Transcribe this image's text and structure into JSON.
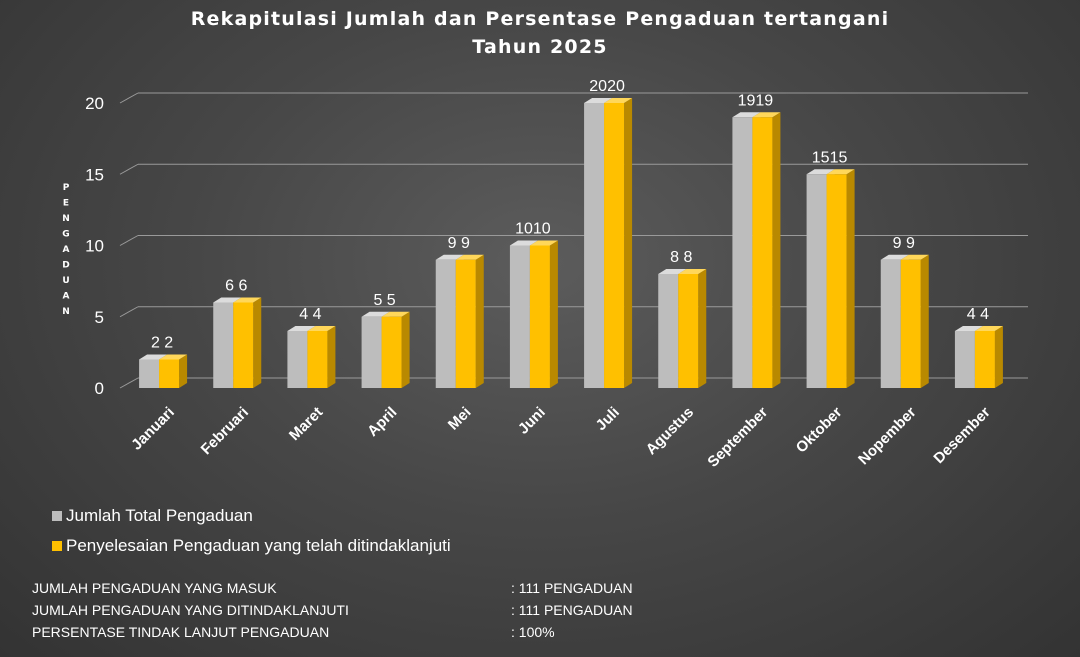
{
  "chart_data": {
    "type": "bar",
    "title": "Rekapitulasi Jumlah dan Persentase Pengaduan tertangani",
    "subtitle": "Tahun 2025",
    "ylabel": "PENGADUAN",
    "xlabel": "",
    "categories": [
      "Januari",
      "Februari",
      "Maret",
      "April",
      "Mei",
      "Juni",
      "Juli",
      "Agustus",
      "September",
      "Oktober",
      "Nopember",
      "Desember"
    ],
    "series": [
      {
        "name": "Jumlah Total Pengaduan",
        "values": [
          2,
          6,
          4,
          5,
          9,
          10,
          20,
          8,
          19,
          15,
          9,
          4
        ],
        "color": "#bdbdbd"
      },
      {
        "name": "Penyelesaian Pengaduan yang telah ditindaklanjuti",
        "values": [
          2,
          6,
          4,
          5,
          9,
          10,
          20,
          8,
          19,
          15,
          9,
          4
        ],
        "color": "#ffc000"
      }
    ],
    "data_labels": [
      "2  2",
      "6  6",
      "4  4",
      "5  5",
      "9  9",
      "1010",
      "2020",
      "8  8",
      "1919",
      "1515",
      "9  9",
      "4  4"
    ],
    "ylim": [
      0,
      20
    ],
    "yticks": [
      0,
      5,
      10,
      15,
      20
    ],
    "grid": true,
    "legend_position": "bottom-left"
  },
  "summary": [
    {
      "label": "JUMLAH PENGADUAN YANG MASUK",
      "value": ": 111 PENGADUAN"
    },
    {
      "label": "JUMLAH PENGADUAN YANG DITINDAKLANJUTI",
      "value": ": 111 PENGADUAN"
    },
    {
      "label": "PERSENTASE TINDAK LANJUT PENGADUAN",
      "value": ": 100%"
    }
  ]
}
